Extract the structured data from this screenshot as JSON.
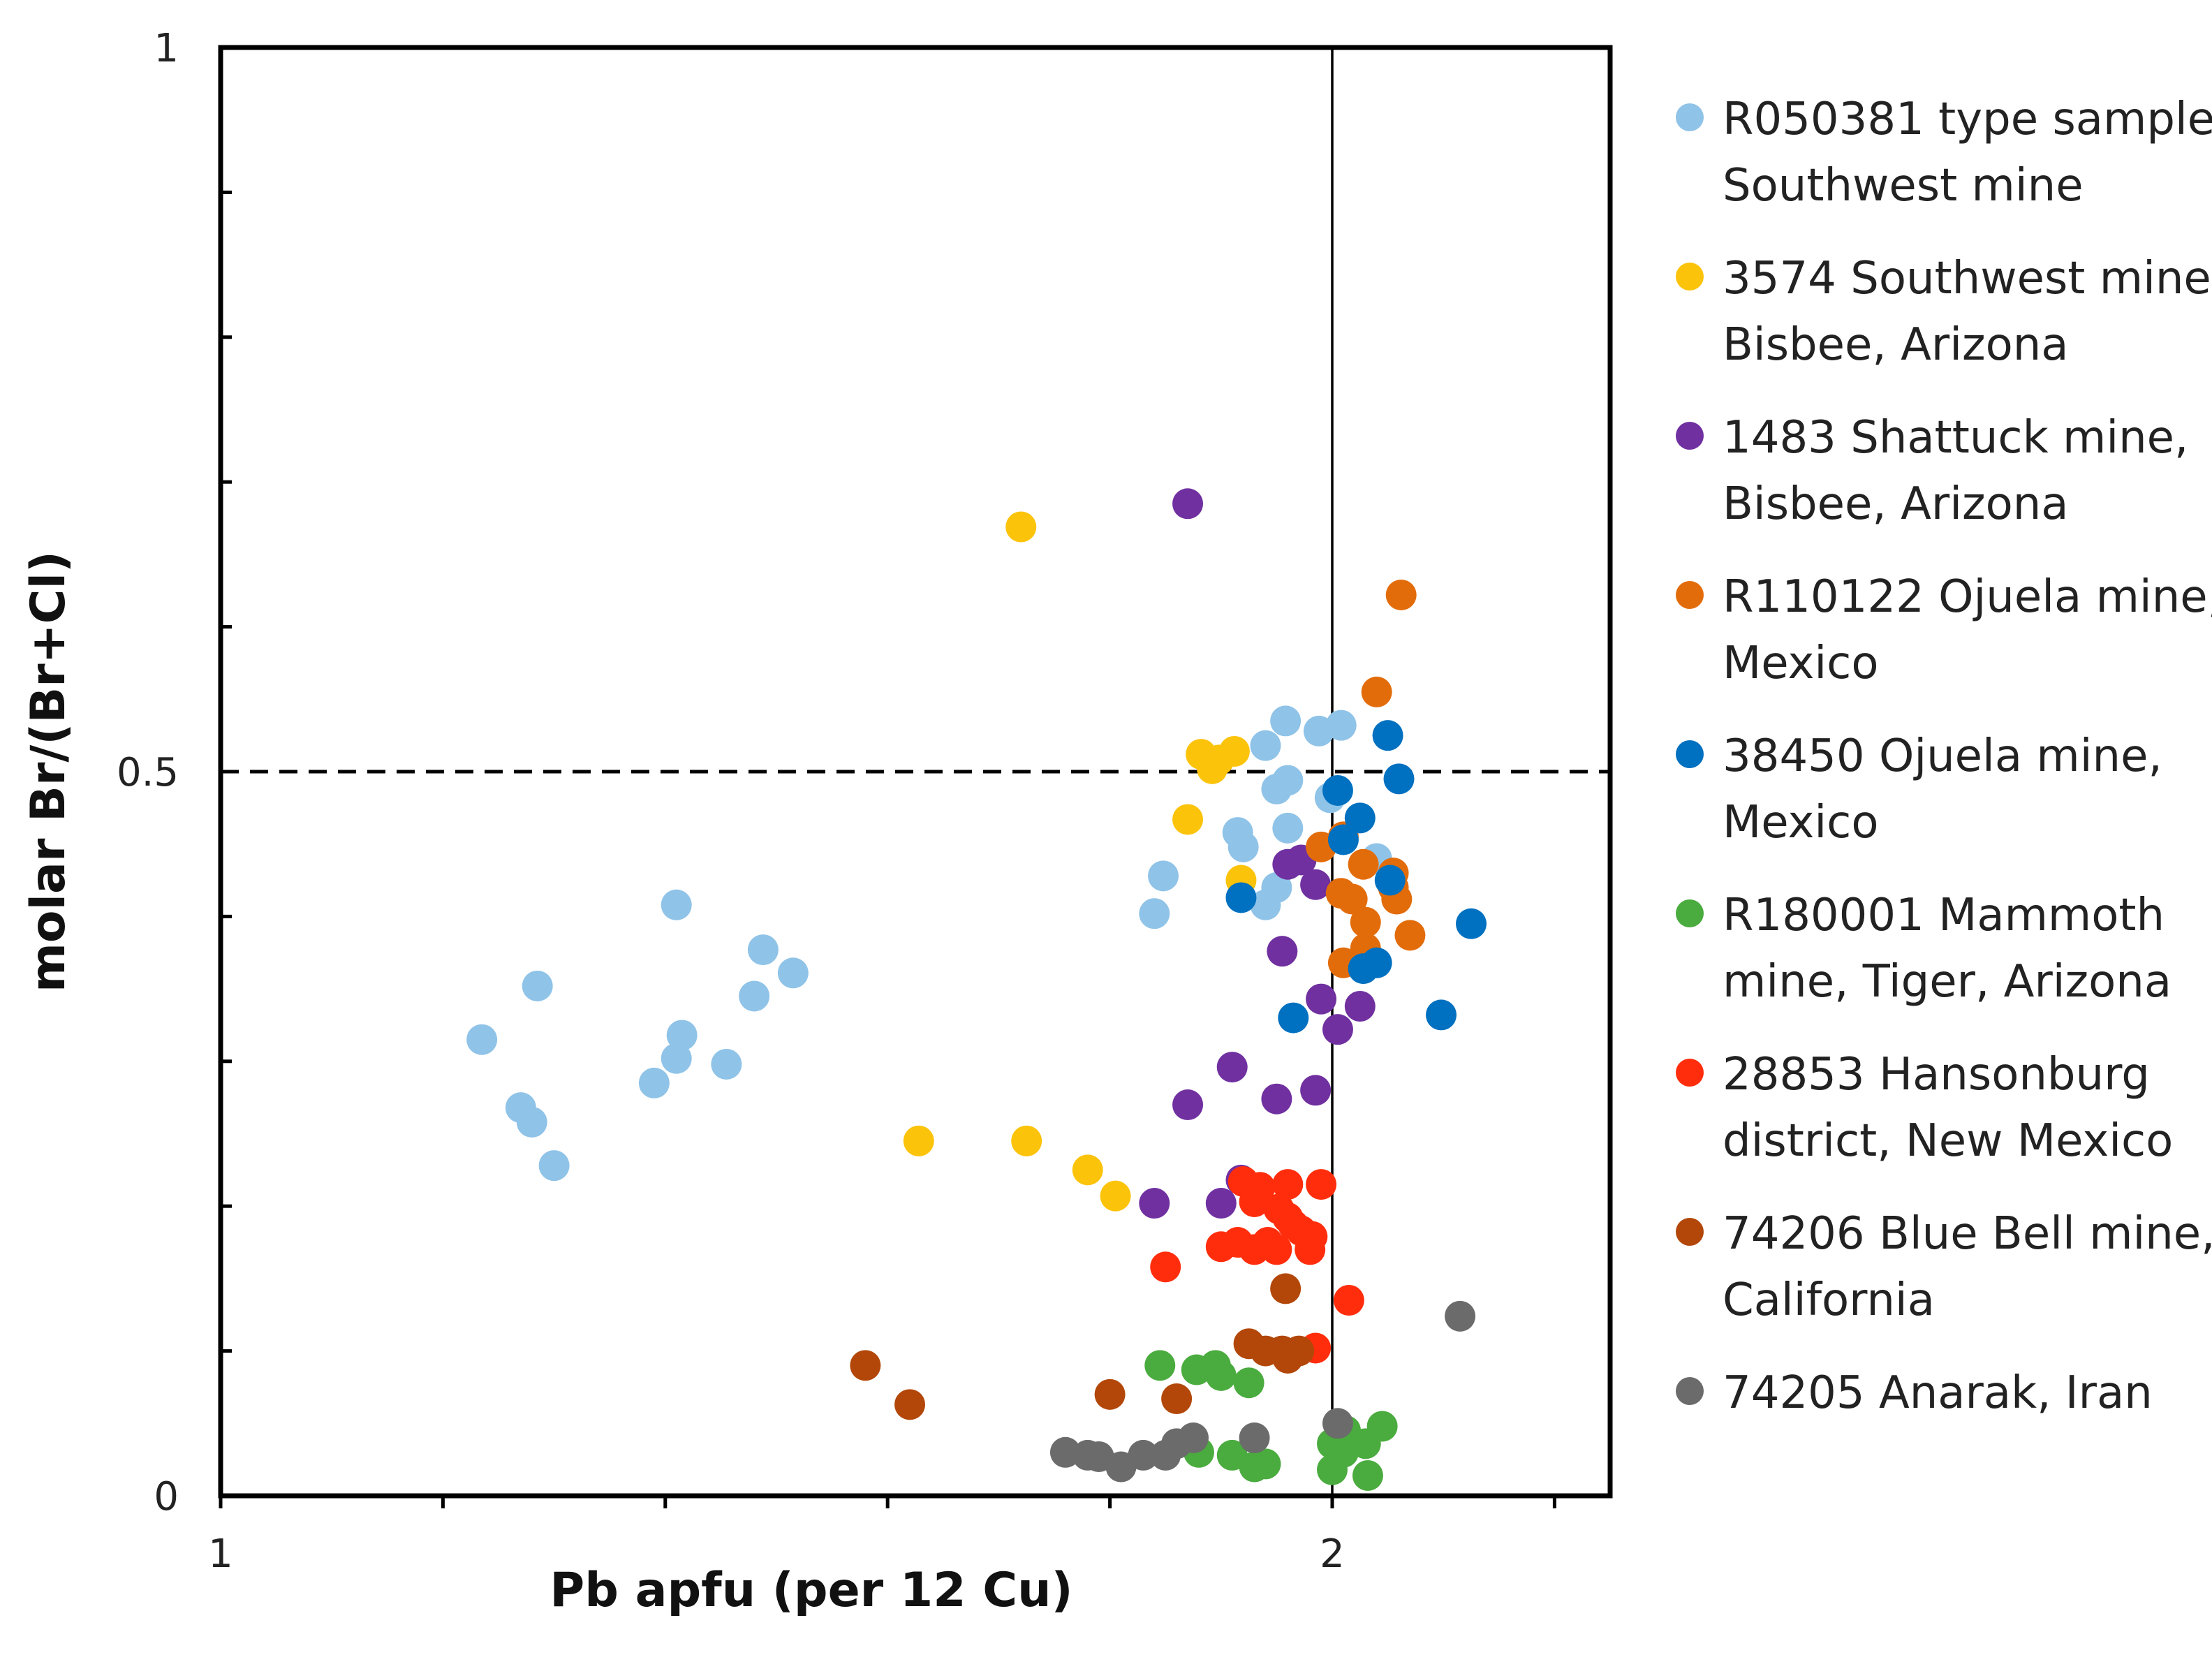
{
  "chart_data": {
    "type": "scatter",
    "xlabel": "Pb apfu (per 12 Cu)",
    "ylabel": "molar Br/(Br+Cl)",
    "xlim": [
      1,
      2.25
    ],
    "ylim": [
      0,
      1
    ],
    "x_tick_labels": [
      {
        "value": 1,
        "label": "1"
      },
      {
        "value": 2,
        "label": "2"
      }
    ],
    "y_tick_labels": [
      {
        "value": 0,
        "label": "0"
      },
      {
        "value": 0.5,
        "label": "0.5"
      },
      {
        "value": 1,
        "label": "1"
      }
    ],
    "x_minor_ticks": [
      1,
      1.2,
      1.4,
      1.6,
      1.8,
      2,
      2.2
    ],
    "y_minor_ticks": [
      0,
      0.1,
      0.2,
      0.3,
      0.4,
      0.5,
      0.6,
      0.7,
      0.8,
      0.9,
      1
    ],
    "reference_lines": [
      {
        "orientation": "horizontal",
        "value": 0.5,
        "style": "dashed"
      },
      {
        "orientation": "vertical",
        "value": 2,
        "style": "solid"
      }
    ],
    "legend_position": "right",
    "series": [
      {
        "name": "R050381 type sample Southwest mine",
        "legend_lines": [
          "R050381 type sample",
          "Southwest mine"
        ],
        "color": "#8fc3e8",
        "points": [
          [
            1.235,
            0.315
          ],
          [
            1.285,
            0.352
          ],
          [
            1.27,
            0.268
          ],
          [
            1.28,
            0.258
          ],
          [
            1.3,
            0.228
          ],
          [
            1.39,
            0.285
          ],
          [
            1.41,
            0.408
          ],
          [
            1.41,
            0.302
          ],
          [
            1.415,
            0.318
          ],
          [
            1.455,
            0.298
          ],
          [
            1.48,
            0.345
          ],
          [
            1.488,
            0.377
          ],
          [
            1.515,
            0.361
          ],
          [
            1.84,
            0.402
          ],
          [
            1.848,
            0.428
          ],
          [
            1.915,
            0.458
          ],
          [
            1.92,
            0.448
          ],
          [
            1.94,
            0.408
          ],
          [
            1.94,
            0.518
          ],
          [
            1.958,
            0.535
          ],
          [
            1.95,
            0.488
          ],
          [
            1.96,
            0.494
          ],
          [
            1.96,
            0.461
          ],
          [
            1.95,
            0.42
          ],
          [
            1.988,
            0.528
          ],
          [
            2.008,
            0.532
          ],
          [
            1.998,
            0.482
          ],
          [
            2.04,
            0.44
          ]
        ]
      },
      {
        "name": "3574 Southwest mine, Bisbee, Arizona",
        "legend_lines": [
          "3574 Southwest mine,",
          "Bisbee, Arizona"
        ],
        "color": "#fcc30b",
        "points": [
          [
            1.72,
            0.669
          ],
          [
            1.882,
            0.512
          ],
          [
            1.898,
            0.508
          ],
          [
            1.912,
            0.514
          ],
          [
            1.892,
            0.502
          ],
          [
            1.87,
            0.467
          ],
          [
            1.918,
            0.425
          ],
          [
            1.628,
            0.245
          ],
          [
            1.725,
            0.245
          ],
          [
            1.78,
            0.225
          ],
          [
            1.805,
            0.207
          ]
        ]
      },
      {
        "name": "1483 Shattuck mine, Bisbee, Arizona",
        "legend_lines": [
          "1483 Shattuck mine,",
          "Bisbee, Arizona"
        ],
        "color": "#7030a0",
        "points": [
          [
            1.87,
            0.685
          ],
          [
            1.96,
            0.436
          ],
          [
            1.972,
            0.439
          ],
          [
            1.985,
            0.422
          ],
          [
            1.955,
            0.376
          ],
          [
            1.99,
            0.343
          ],
          [
            2.025,
            0.338
          ],
          [
            2.005,
            0.322
          ],
          [
            1.91,
            0.296
          ],
          [
            1.95,
            0.274
          ],
          [
            1.985,
            0.28
          ],
          [
            1.87,
            0.27
          ],
          [
            1.918,
            0.218
          ],
          [
            1.84,
            0.202
          ],
          [
            1.9,
            0.202
          ]
        ]
      },
      {
        "name": "R110122 Ojuela mine, Mexico",
        "legend_lines": [
          "R110122 Ojuela mine,",
          "Mexico"
        ],
        "color": "#e36c0a",
        "points": [
          [
            2.062,
            0.622
          ],
          [
            2.04,
            0.555
          ],
          [
            1.99,
            0.448
          ],
          [
            2.01,
            0.455
          ],
          [
            2.028,
            0.436
          ],
          [
            2.055,
            0.43
          ],
          [
            2.008,
            0.416
          ],
          [
            2.018,
            0.412
          ],
          [
            2.058,
            0.412
          ],
          [
            2.055,
            0.42
          ],
          [
            2.03,
            0.396
          ],
          [
            2.07,
            0.387
          ],
          [
            2.01,
            0.368
          ],
          [
            2.03,
            0.378
          ]
        ]
      },
      {
        "name": "38450 Ojuela mine, Mexico",
        "legend_lines": [
          "38450 Ojuela mine,",
          "Mexico"
        ],
        "color": "#0070c0",
        "points": [
          [
            2.05,
            0.525
          ],
          [
            2.06,
            0.495
          ],
          [
            2.005,
            0.487
          ],
          [
            2.025,
            0.468
          ],
          [
            2.01,
            0.453
          ],
          [
            2.052,
            0.425
          ],
          [
            1.918,
            0.413
          ],
          [
            2.125,
            0.395
          ],
          [
            2.04,
            0.368
          ],
          [
            2.028,
            0.364
          ],
          [
            1.965,
            0.33
          ],
          [
            2.098,
            0.332
          ]
        ]
      },
      {
        "name": "R180001 Mammoth mine, Tiger, Arizona",
        "legend_lines": [
          "R180001 Mammoth",
          "mine, Tiger, Arizona"
        ],
        "color": "#4aab3e",
        "points": [
          [
            1.845,
            0.09
          ],
          [
            1.878,
            0.087
          ],
          [
            1.895,
            0.09
          ],
          [
            1.9,
            0.083
          ],
          [
            1.925,
            0.078
          ],
          [
            1.88,
            0.03
          ],
          [
            1.91,
            0.028
          ],
          [
            1.93,
            0.02
          ],
          [
            1.94,
            0.022
          ],
          [
            2.0,
            0.036
          ],
          [
            2.012,
            0.045
          ],
          [
            2.03,
            0.036
          ],
          [
            2.045,
            0.048
          ],
          [
            2.0,
            0.018
          ],
          [
            2.01,
            0.03
          ],
          [
            2.032,
            0.014
          ]
        ]
      },
      {
        "name": "28853 Hansonburg district, New Mexico",
        "legend_lines": [
          "28853 Hansonburg",
          "district, New Mexico"
        ],
        "color": "#ff2d0c",
        "points": [
          [
            1.92,
            0.217
          ],
          [
            1.935,
            0.213
          ],
          [
            1.96,
            0.215
          ],
          [
            1.99,
            0.215
          ],
          [
            1.93,
            0.203
          ],
          [
            1.952,
            0.198
          ],
          [
            1.96,
            0.192
          ],
          [
            1.965,
            0.187
          ],
          [
            1.972,
            0.183
          ],
          [
            1.982,
            0.179
          ],
          [
            1.915,
            0.175
          ],
          [
            1.93,
            0.17
          ],
          [
            1.942,
            0.175
          ],
          [
            1.95,
            0.17
          ],
          [
            1.98,
            0.17
          ],
          [
            1.9,
            0.172
          ],
          [
            1.85,
            0.158
          ],
          [
            2.015,
            0.135
          ],
          [
            1.985,
            0.102
          ]
        ]
      },
      {
        "name": "74206 Blue Bell mine, California",
        "legend_lines": [
          "74206 Blue Bell mine,",
          "California"
        ],
        "color": "#b24709",
        "points": [
          [
            1.958,
            0.143
          ],
          [
            1.925,
            0.105
          ],
          [
            1.94,
            0.1
          ],
          [
            1.955,
            0.1
          ],
          [
            1.96,
            0.095
          ],
          [
            1.97,
            0.1
          ],
          [
            1.58,
            0.09
          ],
          [
            1.62,
            0.063
          ],
          [
            1.8,
            0.07
          ],
          [
            1.86,
            0.067
          ]
        ]
      },
      {
        "name": "74205 Anarak, Iran",
        "legend_lines": [
          "74205 Anarak, Iran"
        ],
        "color": "#6b6b6b",
        "points": [
          [
            2.115,
            0.124
          ],
          [
            2.005,
            0.05
          ],
          [
            1.78,
            0.028
          ],
          [
            1.76,
            0.03
          ],
          [
            1.79,
            0.027
          ],
          [
            1.81,
            0.02
          ],
          [
            1.83,
            0.028
          ],
          [
            1.85,
            0.028
          ],
          [
            1.86,
            0.036
          ],
          [
            1.875,
            0.04
          ],
          [
            1.93,
            0.04
          ]
        ]
      }
    ]
  }
}
